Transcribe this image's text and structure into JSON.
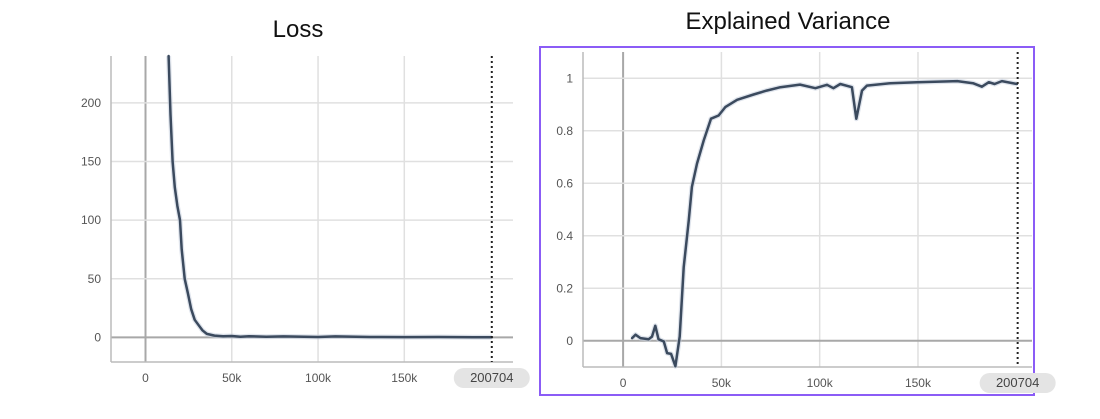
{
  "chart_data": [
    {
      "type": "line",
      "title": "Loss",
      "xlabel": "",
      "ylabel": "",
      "xlim": [
        -20000,
        213000
      ],
      "ylim": [
        -21,
        240
      ],
      "xticks": [
        0,
        50000,
        100000,
        150000
      ],
      "xtick_labels": [
        "0",
        "50k",
        "100k",
        "150k"
      ],
      "yticks": [
        0,
        50,
        100,
        150,
        200
      ],
      "ytick_labels": [
        "0",
        "50",
        "100",
        "150",
        "200"
      ],
      "cursor_step": 200704,
      "cursor_label": "200704",
      "grid": true,
      "selected": false,
      "line_color": "#3b4a5e",
      "series": [
        {
          "x": [
            13400,
            14500,
            15700,
            17000,
            18500,
            20000,
            21000,
            22700,
            24500,
            26500,
            28500,
            31000,
            33000,
            35500,
            40000,
            45000,
            50000,
            55000,
            60000,
            70000,
            80000,
            100000,
            110000,
            130000,
            150000,
            170000,
            190000,
            200704
          ],
          "y": [
            240,
            190,
            150,
            128,
            112,
            100,
            75,
            50,
            38,
            24,
            15,
            10,
            6,
            3,
            1.5,
            1,
            1.2,
            0.5,
            1,
            0.5,
            0.8,
            0.3,
            0.8,
            0.3,
            0.2,
            0.3,
            0.1,
            0.1
          ]
        }
      ]
    },
    {
      "type": "line",
      "title": "Explained Variance",
      "xlabel": "",
      "ylabel": "",
      "xlim": [
        -20400,
        208000
      ],
      "ylim": [
        -0.1,
        1.1
      ],
      "xticks": [
        0,
        50000,
        100000,
        150000
      ],
      "xtick_labels": [
        "0",
        "50k",
        "100k",
        "150k"
      ],
      "yticks": [
        0,
        0.2,
        0.4,
        0.6,
        0.8,
        1
      ],
      "ytick_labels": [
        "0",
        "0.2",
        "0.4",
        "0.6",
        "0.8",
        "1"
      ],
      "cursor_step": 200704,
      "cursor_label": "200704",
      "grid": true,
      "selected": true,
      "selection_color": "#8b5cf6",
      "line_color": "#3b4a5e",
      "series": [
        {
          "x": [
            4600,
            6300,
            8800,
            13000,
            14700,
            16400,
            18000,
            20700,
            22400,
            24400,
            26600,
            28800,
            30800,
            33400,
            35000,
            37600,
            41000,
            44700,
            48600,
            52000,
            58000,
            66400,
            73000,
            80000,
            90000,
            97800,
            103700,
            107000,
            110500,
            116400,
            118600,
            121500,
            124000,
            136000,
            149500,
            170000,
            178000,
            182500,
            186000,
            189000,
            192700,
            200300
          ],
          "y": [
            0.01,
            0.023,
            0.01,
            0.006,
            0.016,
            0.057,
            0.006,
            -0.003,
            -0.047,
            -0.05,
            -0.097,
            0.016,
            0.28,
            0.46,
            0.586,
            0.675,
            0.763,
            0.846,
            0.858,
            0.89,
            0.918,
            0.938,
            0.953,
            0.966,
            0.976,
            0.962,
            0.975,
            0.962,
            0.978,
            0.966,
            0.846,
            0.953,
            0.972,
            0.981,
            0.985,
            0.989,
            0.981,
            0.968,
            0.985,
            0.978,
            0.989,
            0.978
          ]
        }
      ]
    }
  ]
}
